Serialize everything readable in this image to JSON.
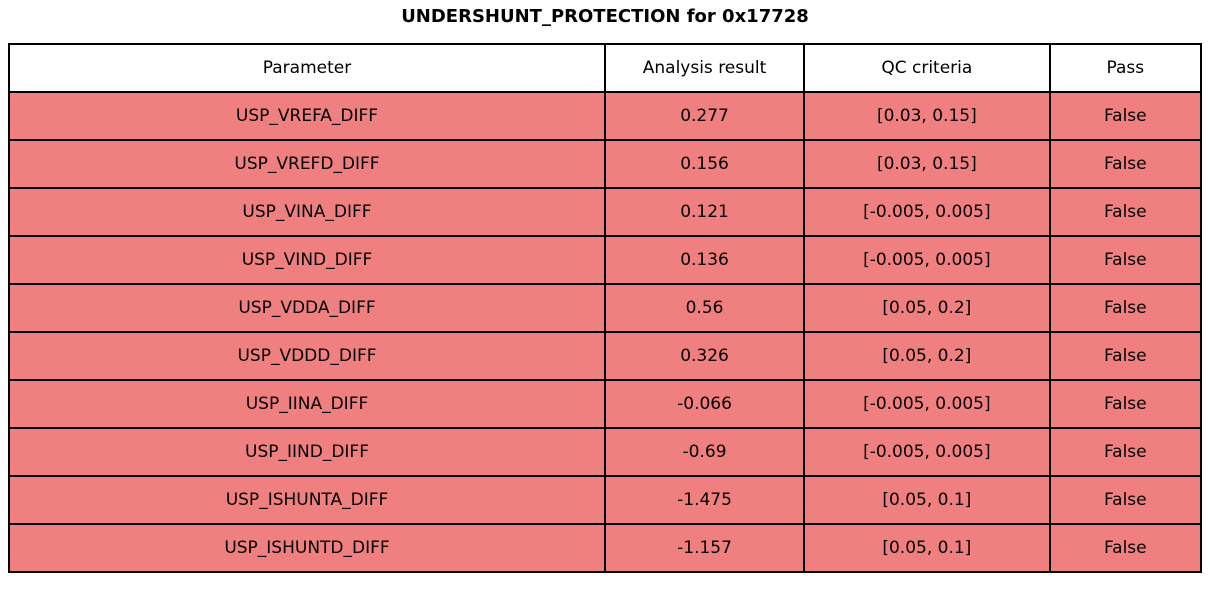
{
  "title": "UNDERSHUNT_PROTECTION for 0x17728",
  "colors": {
    "row_fail_bg": "#F08080",
    "header_bg": "#FFFFFF",
    "border": "#000000",
    "text": "#000000"
  },
  "chart_data": {
    "type": "table",
    "title": "UNDERSHUNT_PROTECTION for 0x17728",
    "columns": [
      "Parameter",
      "Analysis result",
      "QC criteria",
      "Pass"
    ],
    "rows": [
      {
        "parameter": "USP_VREFA_DIFF",
        "analysis_result": "0.277",
        "qc_criteria": "[0.03, 0.15]",
        "pass": "False"
      },
      {
        "parameter": "USP_VREFD_DIFF",
        "analysis_result": "0.156",
        "qc_criteria": "[0.03, 0.15]",
        "pass": "False"
      },
      {
        "parameter": "USP_VINA_DIFF",
        "analysis_result": "0.121",
        "qc_criteria": "[-0.005, 0.005]",
        "pass": "False"
      },
      {
        "parameter": "USP_VIND_DIFF",
        "analysis_result": "0.136",
        "qc_criteria": "[-0.005, 0.005]",
        "pass": "False"
      },
      {
        "parameter": "USP_VDDA_DIFF",
        "analysis_result": "0.56",
        "qc_criteria": "[0.05, 0.2]",
        "pass": "False"
      },
      {
        "parameter": "USP_VDDD_DIFF",
        "analysis_result": "0.326",
        "qc_criteria": "[0.05, 0.2]",
        "pass": "False"
      },
      {
        "parameter": "USP_IINA_DIFF",
        "analysis_result": "-0.066",
        "qc_criteria": "[-0.005, 0.005]",
        "pass": "False"
      },
      {
        "parameter": "USP_IIND_DIFF",
        "analysis_result": "-0.69",
        "qc_criteria": "[-0.005, 0.005]",
        "pass": "False"
      },
      {
        "parameter": "USP_ISHUNTA_DIFF",
        "analysis_result": "-1.475",
        "qc_criteria": "[0.05, 0.1]",
        "pass": "False"
      },
      {
        "parameter": "USP_ISHUNTD_DIFF",
        "analysis_result": "-1.157",
        "qc_criteria": "[0.05, 0.1]",
        "pass": "False"
      }
    ]
  }
}
